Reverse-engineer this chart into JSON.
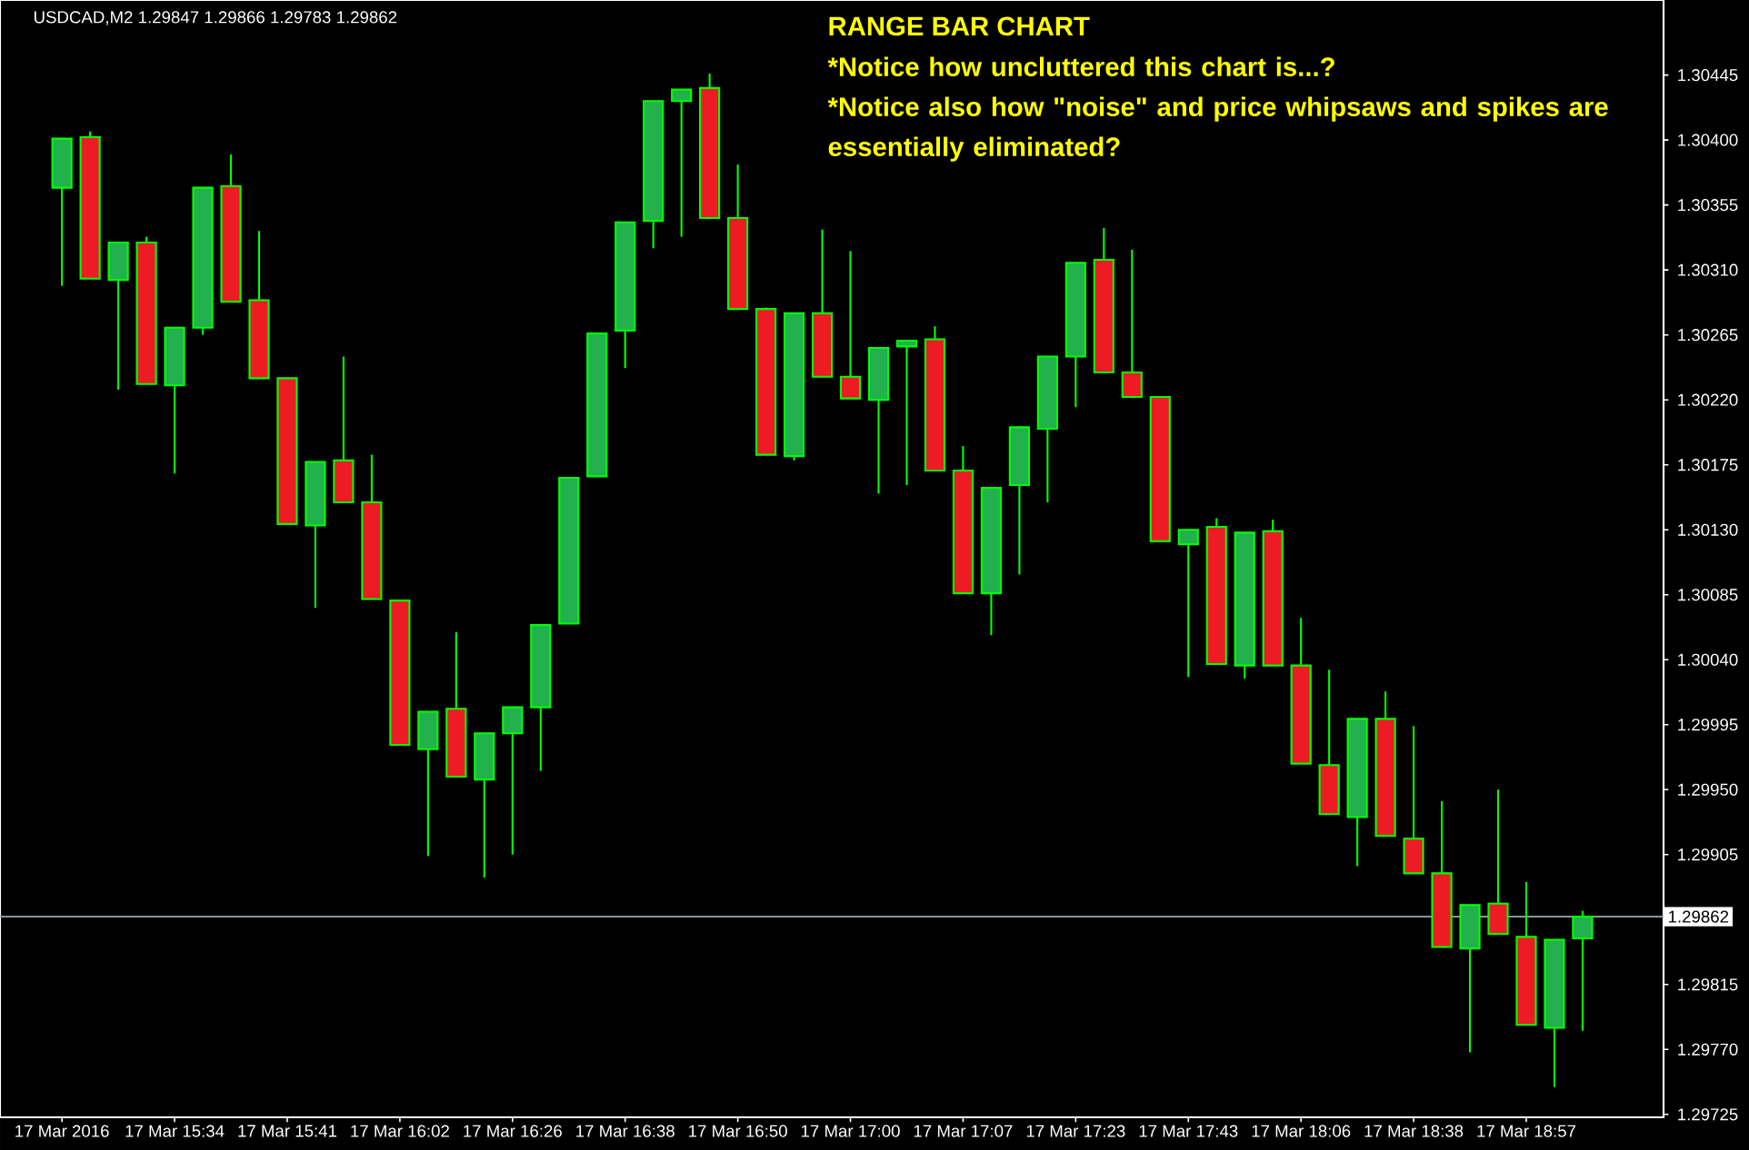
{
  "chart_data": {
    "type": "candlestick",
    "title": "RANGE BAR CHART",
    "subtitle": "USDCAD,M2  1.29847 1.29866 1.29783 1.29862",
    "annotations": [
      "*Notice how uncluttered this chart is...?",
      "*Notice also how \"noise\" and price whipsaws and spikes are essentially eliminated?"
    ],
    "categories": [
      "17 Mar 2016",
      null,
      null,
      null,
      "17 Mar 15:34",
      null,
      null,
      null,
      "17 Mar 15:41",
      null,
      null,
      null,
      "17 Mar 16:02",
      null,
      null,
      null,
      "17 Mar 16:26",
      null,
      null,
      null,
      "17 Mar 16:38",
      null,
      null,
      null,
      "17 Mar 16:50",
      null,
      null,
      null,
      "17 Mar 17:00",
      null,
      null,
      null,
      "17 Mar 17:07",
      null,
      null,
      null,
      "17 Mar 17:23",
      null,
      null,
      null,
      "17 Mar 17:43",
      null,
      null,
      null,
      "17 Mar 18:06",
      null,
      null,
      null,
      "17 Mar 18:38",
      null,
      null,
      null,
      "17 Mar 18:57",
      null,
      null
    ],
    "ohlc": [
      [
        1.30367,
        1.30401,
        1.30299,
        1.30401
      ],
      [
        1.30402,
        1.30406,
        1.30304,
        1.30304
      ],
      [
        1.30303,
        1.30329,
        1.30227,
        1.30329
      ],
      [
        1.30329,
        1.30333,
        1.30231,
        1.30231
      ],
      [
        1.3023,
        1.3027,
        1.30169,
        1.3027
      ],
      [
        1.3027,
        1.30367,
        1.30265,
        1.30367
      ],
      [
        1.30368,
        1.3039,
        1.30288,
        1.30288
      ],
      [
        1.30289,
        1.30337,
        1.30235,
        1.30235
      ],
      [
        1.30235,
        1.30235,
        1.30134,
        1.30134
      ],
      [
        1.30133,
        1.30177,
        1.30076,
        1.30177
      ],
      [
        1.30178,
        1.3025,
        1.30149,
        1.30149
      ],
      [
        1.30149,
        1.30182,
        1.30082,
        1.30082
      ],
      [
        1.30081,
        1.30081,
        1.29981,
        1.29981
      ],
      [
        1.29978,
        1.30004,
        1.29904,
        1.30004
      ],
      [
        1.30006,
        1.30059,
        1.29959,
        1.29959
      ],
      [
        1.29957,
        1.29989,
        1.29889,
        1.29989
      ],
      [
        1.29989,
        1.30007,
        1.29905,
        1.30007
      ],
      [
        1.30007,
        1.30064,
        1.29963,
        1.30064
      ],
      [
        1.30065,
        1.30166,
        1.30065,
        1.30166
      ],
      [
        1.30167,
        1.30266,
        1.30167,
        1.30266
      ],
      [
        1.30268,
        1.30343,
        1.30242,
        1.30343
      ],
      [
        1.30344,
        1.30427,
        1.30325,
        1.30427
      ],
      [
        1.30427,
        1.30435,
        1.30333,
        1.30435
      ],
      [
        1.30436,
        1.30446,
        1.30346,
        1.30346
      ],
      [
        1.30346,
        1.30383,
        1.30283,
        1.30283
      ],
      [
        1.30283,
        1.30284,
        1.30182,
        1.30182
      ],
      [
        1.30181,
        1.3028,
        1.30178,
        1.3028
      ],
      [
        1.3028,
        1.30338,
        1.30236,
        1.30236
      ],
      [
        1.30236,
        1.30323,
        1.30221,
        1.30221
      ],
      [
        1.3022,
        1.30256,
        1.30155,
        1.30256
      ],
      [
        1.30257,
        1.30261,
        1.30161,
        1.30261
      ],
      [
        1.30262,
        1.30271,
        1.30171,
        1.30171
      ],
      [
        1.30171,
        1.30188,
        1.30086,
        1.30086
      ],
      [
        1.30086,
        1.30159,
        1.30057,
        1.30159
      ],
      [
        1.30161,
        1.30201,
        1.30099,
        1.30201
      ],
      [
        1.302,
        1.3025,
        1.30149,
        1.3025
      ],
      [
        1.3025,
        1.30315,
        1.30215,
        1.30315
      ],
      [
        1.30317,
        1.30339,
        1.30239,
        1.30239
      ],
      [
        1.30239,
        1.30324,
        1.30222,
        1.30222
      ],
      [
        1.30222,
        1.30222,
        1.30122,
        1.30122
      ],
      [
        1.3012,
        1.3013,
        1.30028,
        1.3013
      ],
      [
        1.30132,
        1.30138,
        1.30037,
        1.30037
      ],
      [
        1.30036,
        1.30128,
        1.30027,
        1.30128
      ],
      [
        1.30129,
        1.30137,
        1.30036,
        1.30036
      ],
      [
        1.30036,
        1.30069,
        1.29968,
        1.29968
      ],
      [
        1.29967,
        1.30033,
        1.29933,
        1.29933
      ],
      [
        1.29931,
        1.29999,
        1.29897,
        1.29999
      ],
      [
        1.29999,
        1.30018,
        1.29918,
        1.29918
      ],
      [
        1.29916,
        1.29994,
        1.29892,
        1.29892
      ],
      [
        1.29892,
        1.29942,
        1.29841,
        1.29841
      ],
      [
        1.2984,
        1.2987,
        1.29768,
        1.2987
      ],
      [
        1.29871,
        1.2995,
        1.2985,
        1.2985
      ],
      [
        1.29848,
        1.29886,
        1.29787,
        1.29787
      ],
      [
        1.29785,
        1.29846,
        1.29744,
        1.29846
      ],
      [
        1.29847,
        1.29866,
        1.29783,
        1.29862
      ]
    ],
    "colors": [
      "#22b14c",
      "#ed1c24",
      "#22b14c",
      "#ed1c24",
      "#22b14c",
      "#22b14c",
      "#ed1c24",
      "#ed1c24",
      "#ed1c24",
      "#22b14c",
      "#ed1c24",
      "#ed1c24",
      "#ed1c24",
      "#22b14c",
      "#ed1c24",
      "#22b14c",
      "#22b14c",
      "#22b14c",
      "#22b14c",
      "#22b14c",
      "#22b14c",
      "#22b14c",
      "#22b14c",
      "#ed1c24",
      "#ed1c24",
      "#ed1c24",
      "#22b14c",
      "#ed1c24",
      "#ed1c24",
      "#22b14c",
      "#22b14c",
      "#ed1c24",
      "#ed1c24",
      "#22b14c",
      "#22b14c",
      "#22b14c",
      "#22b14c",
      "#ed1c24",
      "#ed1c24",
      "#ed1c24",
      "#22b14c",
      "#ed1c24",
      "#22b14c",
      "#ed1c24",
      "#ed1c24",
      "#ed1c24",
      "#22b14c",
      "#ed1c24",
      "#ed1c24",
      "#ed1c24",
      "#22b14c",
      "#ed1c24",
      "#ed1c24",
      "#22b14c",
      "#22b14c"
    ],
    "ylim": [
      1.29723,
      1.30497
    ],
    "yticks": [
      1.29725,
      {
        "value": 1.2977,
        "label": "1.29770"
      },
      1.29815,
      1.29905,
      {
        "value": 1.2995,
        "label": "1.29950"
      },
      1.29995,
      {
        "value": 1.3004,
        "label": "1.30040"
      },
      1.30085,
      {
        "value": 1.3013,
        "label": "1.30130"
      },
      1.30175,
      {
        "value": 1.3022,
        "label": "1.30220"
      },
      1.30265,
      {
        "value": 1.3031,
        "label": "1.30310"
      },
      1.30355,
      {
        "value": 1.304,
        "label": "1.30400"
      },
      1.30445
    ],
    "ref_lines": [
      {
        "axis": "y",
        "value": 1.29862,
        "label": "1.29862",
        "color": "#a0a8b0"
      }
    ]
  }
}
